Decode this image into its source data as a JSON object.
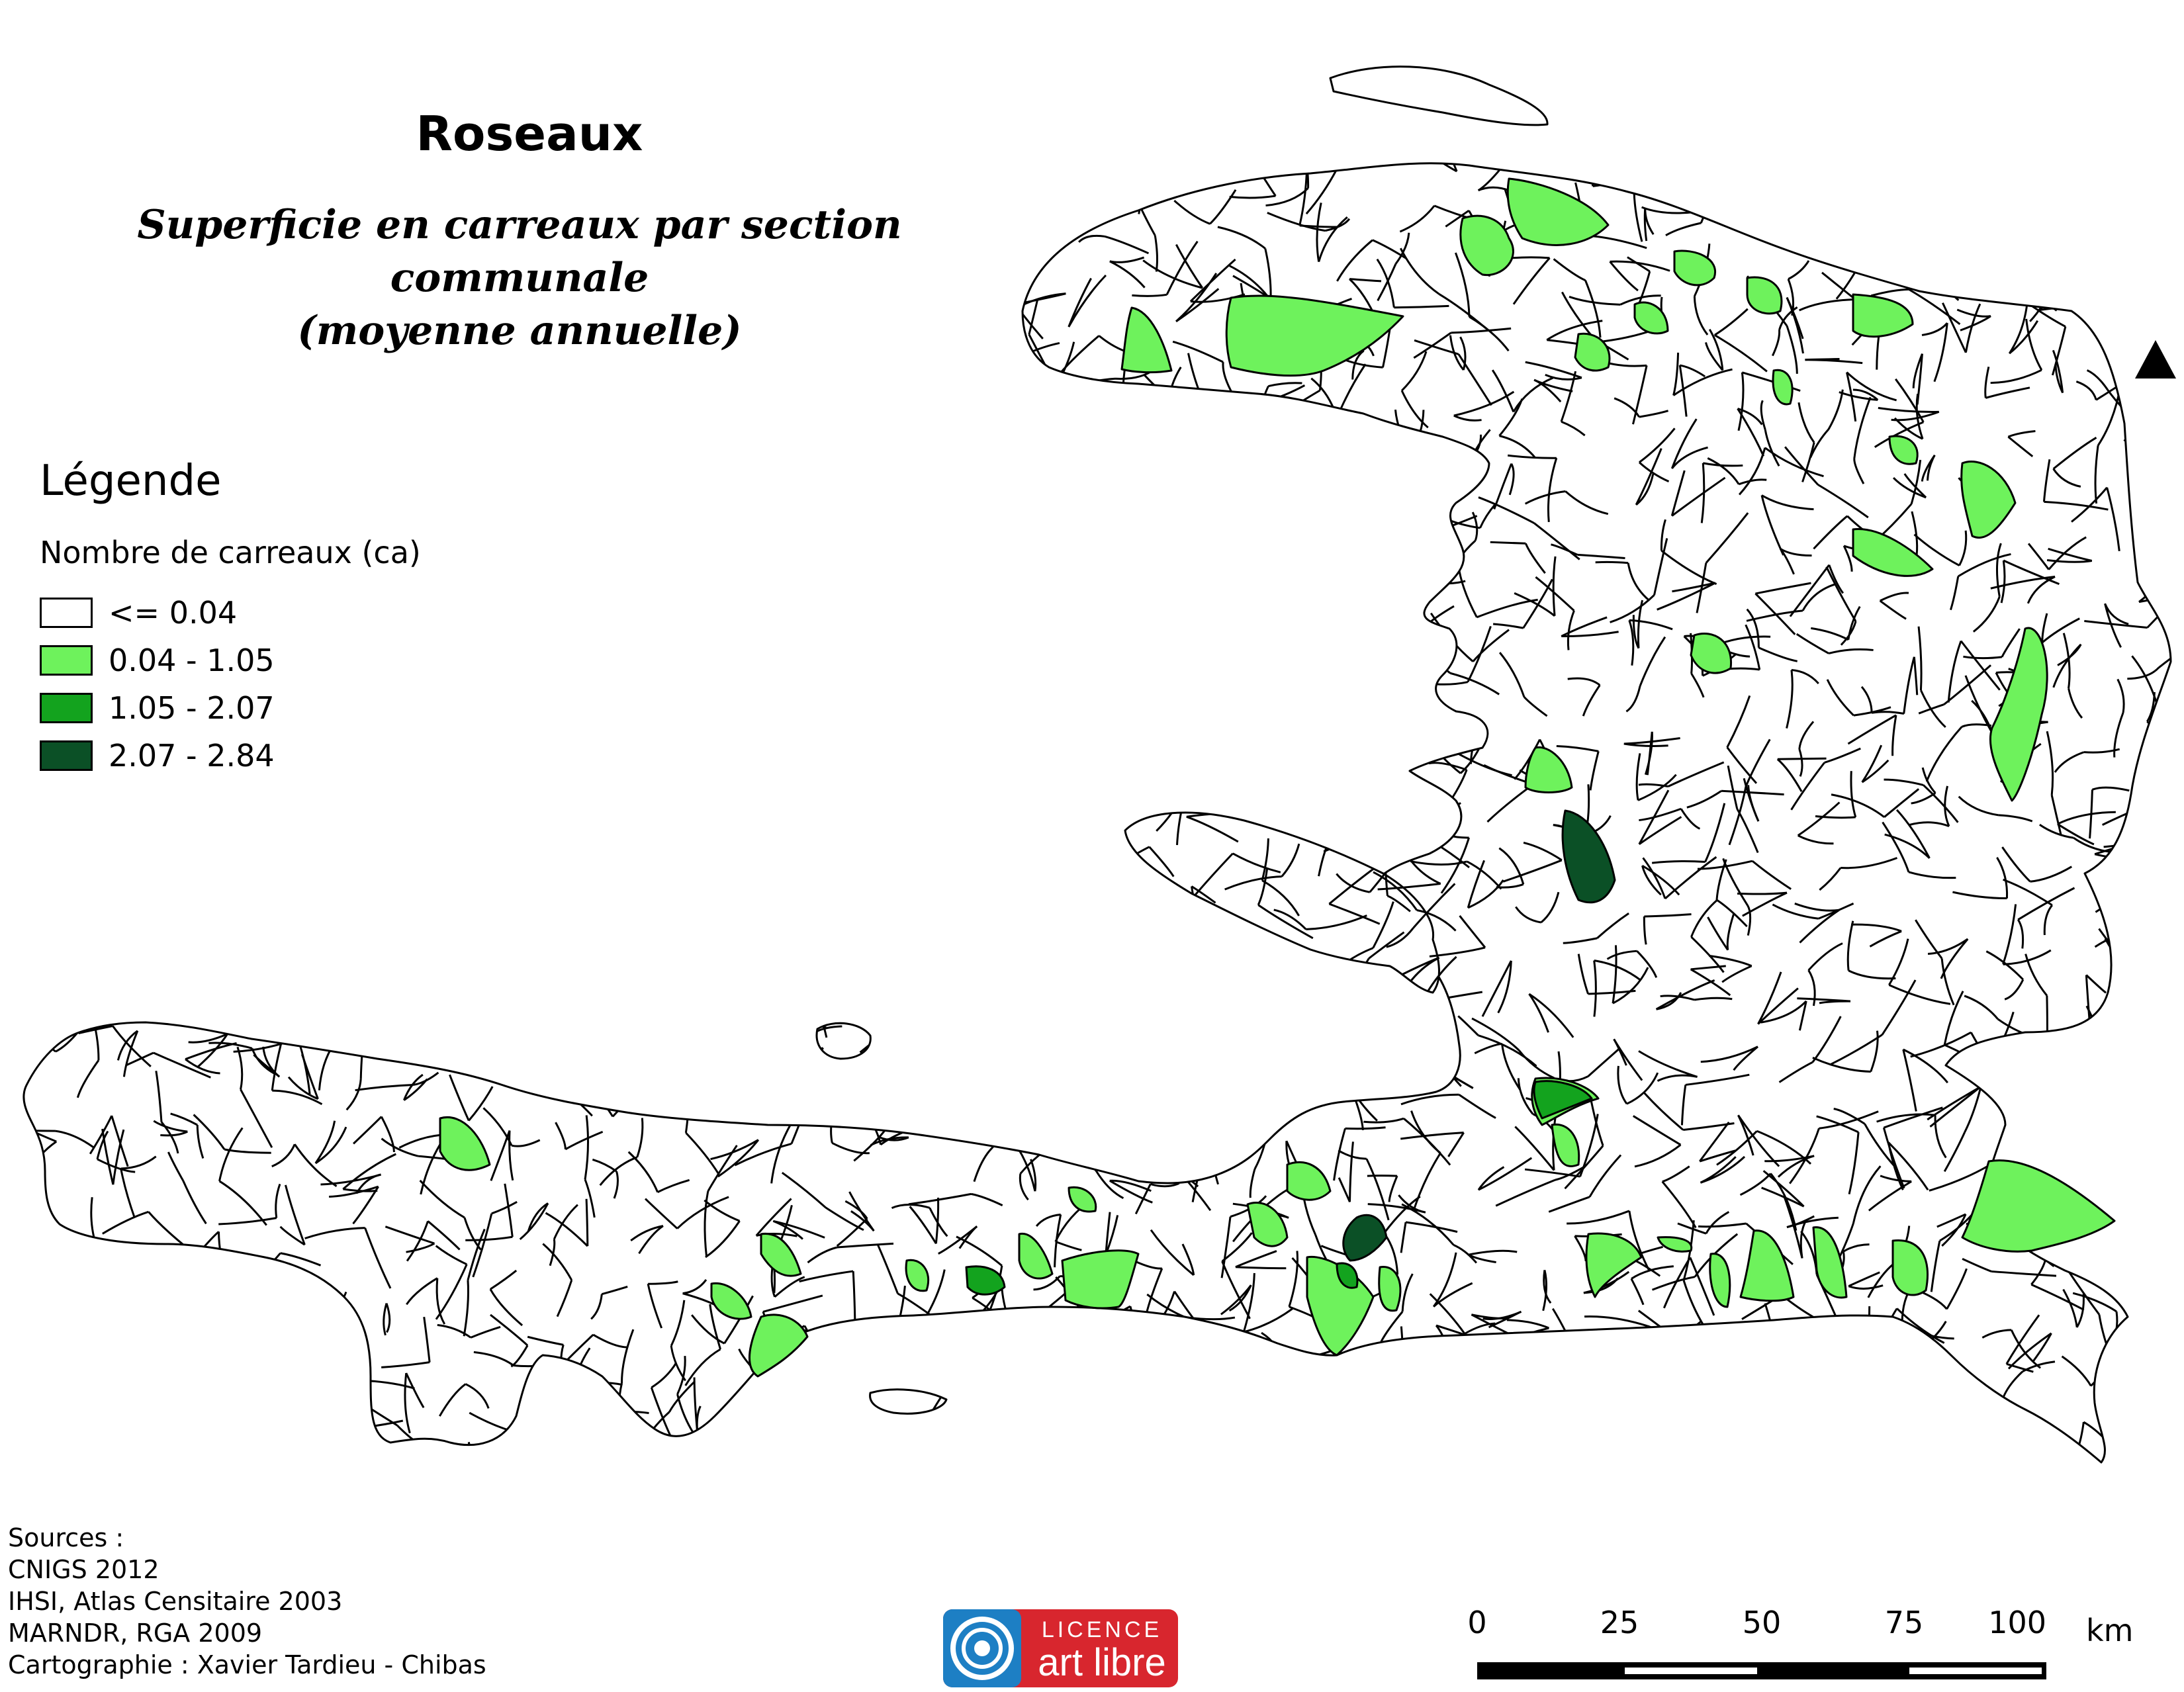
{
  "title": "Roseaux",
  "subtitle_line1": "Superficie en carreaux par section communale",
  "subtitle_line2": "(moyenne annuelle)",
  "legend": {
    "heading": "Légende",
    "variable": "Nombre de carreaux (ca)",
    "classes": [
      {
        "label": "<= 0.04",
        "color": "#ffffff"
      },
      {
        "label": "0.04 - 1.05",
        "color": "#6ef25c"
      },
      {
        "label": "1.05 - 2.07",
        "color": "#13a31e"
      },
      {
        "label": "2.07 - 2.84",
        "color": "#0b5026"
      }
    ]
  },
  "sources": [
    "Sources :",
    "CNIGS 2012",
    "IHSI, Atlas Censitaire 2003",
    "MARNDR, RGA 2009",
    "Cartographie : Xavier Tardieu - Chibas"
  ],
  "licence": {
    "line1": "LICENCE",
    "line2": "art libre",
    "color": "#d8262e",
    "ring_color": "#1d7fc4"
  },
  "scale_bar": {
    "ticks": [
      "0",
      "25",
      "50",
      "75",
      "100"
    ],
    "unit": "km"
  },
  "north_arrow": "triangle-north-icon"
}
